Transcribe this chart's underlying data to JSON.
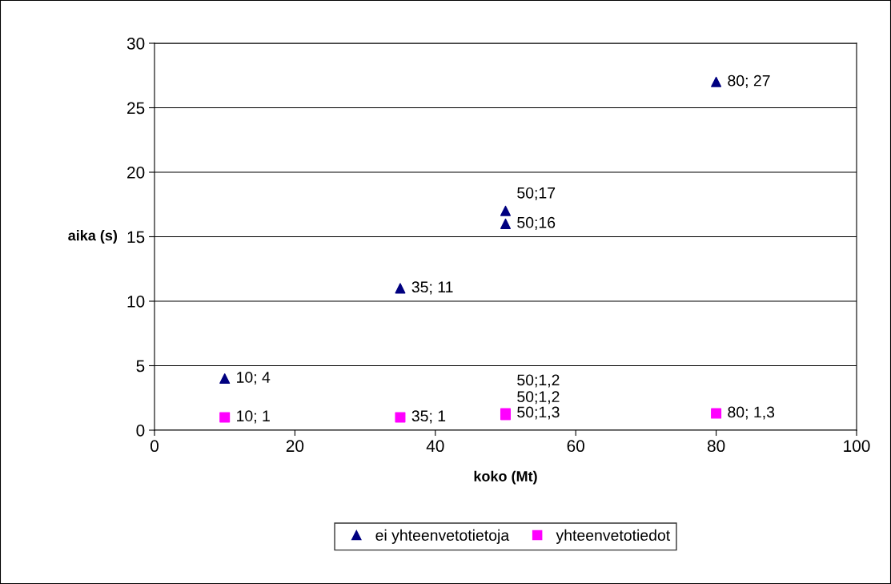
{
  "chart_data": {
    "type": "scatter",
    "xlabel": "koko (Mt)",
    "ylabel": "aika (s)",
    "xlim": [
      0,
      100
    ],
    "xticks": [
      0,
      20,
      40,
      60,
      80,
      100
    ],
    "ylim": [
      0,
      30
    ],
    "yticks": [
      0,
      5,
      10,
      15,
      20,
      25,
      30
    ],
    "grid": "y",
    "legend": "bottom",
    "series": [
      {
        "name": "ei yhteenvetotietoja",
        "color": "#000080",
        "marker": "triangle",
        "x": [
          10,
          35,
          50,
          50,
          80
        ],
        "values": [
          4,
          11,
          16,
          17,
          27
        ],
        "value_labels": [
          "10; 4",
          "35; 11",
          "50;16",
          "50;17",
          "80; 27"
        ]
      },
      {
        "name": "yhteenvetotiedot",
        "color": "#ff00ff",
        "marker": "square",
        "x": [
          10,
          35,
          50,
          50,
          50,
          80
        ],
        "values": [
          1,
          1,
          1.3,
          1.2,
          1.2,
          1.3
        ],
        "value_labels": [
          "10; 1",
          "35; 1",
          "50;1,3",
          "50;1,2",
          "50;1,2",
          "80; 1,3"
        ]
      }
    ]
  }
}
